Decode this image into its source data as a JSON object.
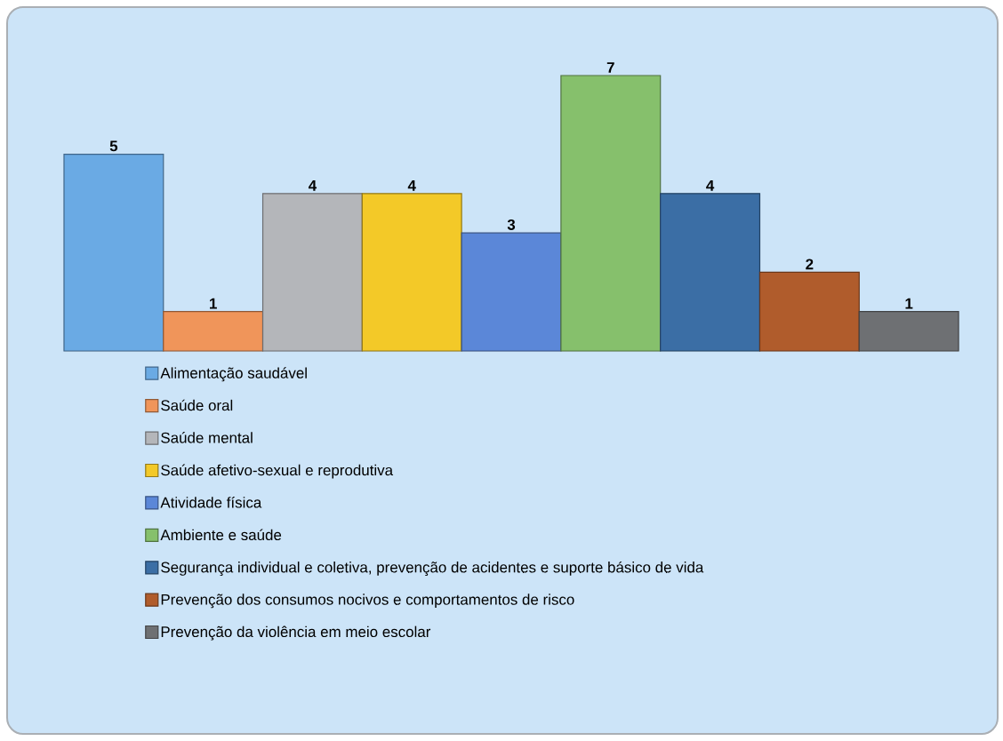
{
  "chart_data": {
    "type": "bar",
    "categories": [
      null
    ],
    "series": [
      {
        "name": "Alimentação saudável",
        "color": "#6aaae4",
        "values": [
          5
        ]
      },
      {
        "name": "Saúde oral",
        "color": "#f0955a",
        "values": [
          1
        ]
      },
      {
        "name": "Saúde mental",
        "color": "#b4b6ba",
        "values": [
          4
        ]
      },
      {
        "name": "Saúde afetivo-sexual e reprodutiva",
        "color": "#f3c928",
        "values": [
          4
        ]
      },
      {
        "name": "Atividade física",
        "color": "#5b87d8",
        "values": [
          3
        ]
      },
      {
        "name": "Ambiente e saúde",
        "color": "#86c06c",
        "values": [
          7
        ]
      },
      {
        "name": "Segurança individual e coletiva, prevenção de acidentes e suporte básico de vida",
        "color": "#3b6ea5",
        "values": [
          4
        ]
      },
      {
        "name": "Prevenção dos consumos nocivos e comportamentos de risco",
        "color": "#b05c2c",
        "values": [
          2
        ]
      },
      {
        "name": "Prevenção da violência em meio escolar",
        "color": "#6e7073",
        "values": [
          1
        ]
      }
    ],
    "data_labels": true,
    "legend": "bottom"
  }
}
